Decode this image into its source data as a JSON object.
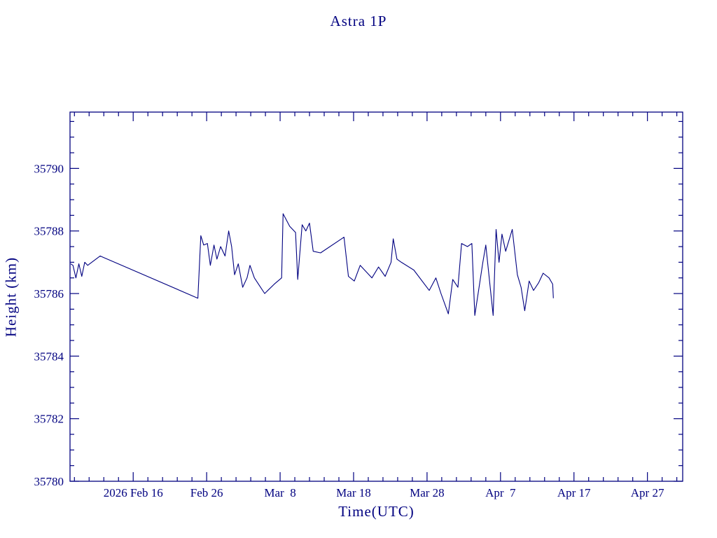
{
  "page": {
    "background": "#ffffff",
    "foreground": "#000080"
  },
  "chart_data": {
    "type": "line",
    "title": "Astra 1P",
    "xlabel": "Time(UTC)",
    "ylabel": "Height (km)",
    "color": "#000080",
    "grid": false,
    "legend": "none",
    "x_encoding": "days relative to 2026 Feb 16",
    "xlim": [
      -8.6,
      74.8
    ],
    "ylim": [
      35780,
      35791.8
    ],
    "xticks": [
      {
        "value": 0,
        "label": "2026 Feb 16"
      },
      {
        "value": 10,
        "label": "Feb 26"
      },
      {
        "value": 20,
        "label": "Mar  8"
      },
      {
        "value": 30,
        "label": "Mar 18"
      },
      {
        "value": 40,
        "label": "Mar 28"
      },
      {
        "value": 50,
        "label": "Apr  7"
      },
      {
        "value": 60,
        "label": "Apr 17"
      },
      {
        "value": 70,
        "label": "Apr 27"
      }
    ],
    "xminor_step": 2,
    "yticks": [
      {
        "value": 35780,
        "label": "35780"
      },
      {
        "value": 35782,
        "label": "35782"
      },
      {
        "value": 35784,
        "label": "35784"
      },
      {
        "value": 35786,
        "label": "35786"
      },
      {
        "value": 35788,
        "label": "35788"
      },
      {
        "value": 35790,
        "label": "35790"
      }
    ],
    "yminor_step": 0.5,
    "series": [
      {
        "name": "height",
        "x": [
          -8.5,
          -8.2,
          -7.8,
          -7.4,
          -7.0,
          -6.6,
          -6.2,
          -4.5,
          -4.0,
          8.8,
          9.2,
          9.6,
          10.1,
          10.5,
          11.0,
          11.4,
          11.9,
          12.5,
          13.0,
          13.4,
          13.8,
          14.3,
          14.9,
          15.5,
          15.9,
          16.5,
          17.2,
          17.9,
          19.2,
          20.2,
          20.4,
          21.3,
          22.1,
          22.4,
          23.0,
          23.5,
          24.0,
          24.5,
          25.5,
          28.7,
          29.3,
          30.1,
          30.9,
          31.7,
          32.5,
          33.4,
          34.3,
          35.1,
          35.4,
          35.9,
          36.5,
          38.2,
          40.3,
          41.2,
          41.9,
          42.9,
          43.5,
          44.2,
          44.7,
          45.5,
          46.1,
          46.5,
          47.6,
          48.0,
          49.0,
          49.4,
          49.8,
          50.2,
          50.7,
          51.6,
          52.3,
          52.8,
          53.3,
          53.9,
          54.5,
          55.2,
          55.8,
          56.6,
          57.1,
          57.2
        ],
        "y": [
          35786.95,
          35786.9,
          35786.5,
          35786.95,
          35786.55,
          35787.0,
          35786.9,
          35787.2,
          35787.15,
          35785.85,
          35787.85,
          35787.55,
          35787.6,
          35786.9,
          35787.55,
          35787.1,
          35787.5,
          35787.2,
          35788.0,
          35787.5,
          35786.6,
          35786.95,
          35786.2,
          35786.5,
          35786.9,
          35786.5,
          35786.25,
          35786.0,
          35786.3,
          35786.5,
          35788.55,
          35788.15,
          35787.95,
          35786.45,
          35788.2,
          35788.0,
          35788.25,
          35787.35,
          35787.3,
          35787.8,
          35786.55,
          35786.4,
          35786.9,
          35786.7,
          35786.5,
          35786.85,
          35786.55,
          35787.0,
          35787.75,
          35787.1,
          35787.0,
          35786.75,
          35786.1,
          35786.5,
          35786.0,
          35785.35,
          35786.45,
          35786.2,
          35787.6,
          35787.5,
          35787.6,
          35785.3,
          35787.0,
          35787.55,
          35785.3,
          35788.05,
          35787.0,
          35787.9,
          35787.35,
          35788.05,
          35786.6,
          35786.2,
          35785.45,
          35786.4,
          35786.1,
          35786.35,
          35786.65,
          35786.5,
          35786.3,
          35785.85
        ]
      }
    ]
  }
}
